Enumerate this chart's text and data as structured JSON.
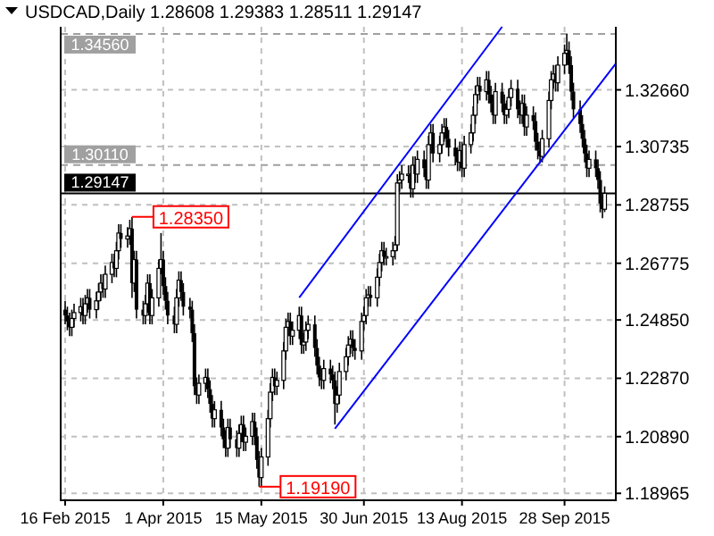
{
  "chart_data": {
    "type": "candlestick",
    "title": "USDCAD,Daily  1.28608 1.29383 1.28511 1.29147",
    "color": "#000000",
    "x": [
      "2015-02-16",
      "2015-02-17",
      "2015-02-18",
      "2015-02-19",
      "2015-02-20",
      "2015-02-23",
      "2015-02-24",
      "2015-02-25",
      "2015-02-26",
      "2015-02-27",
      "2015-03-02",
      "2015-03-03",
      "2015-03-04",
      "2015-03-05",
      "2015-03-06",
      "2015-03-09",
      "2015-03-10",
      "2015-03-11",
      "2015-03-12",
      "2015-03-13",
      "2015-03-16",
      "2015-03-17",
      "2015-03-18",
      "2015-03-19",
      "2015-03-20",
      "2015-03-23",
      "2015-03-24",
      "2015-03-25",
      "2015-03-26",
      "2015-03-27",
      "2015-03-30",
      "2015-03-31",
      "2015-04-01",
      "2015-04-02",
      "2015-04-03",
      "2015-04-06",
      "2015-04-07",
      "2015-04-08",
      "2015-04-09",
      "2015-04-10",
      "2015-04-13",
      "2015-04-14",
      "2015-04-15",
      "2015-04-16",
      "2015-04-17",
      "2015-04-20",
      "2015-04-21",
      "2015-04-22",
      "2015-04-23",
      "2015-04-24",
      "2015-04-27",
      "2015-04-28",
      "2015-04-29",
      "2015-04-30",
      "2015-05-01",
      "2015-05-04",
      "2015-05-05",
      "2015-05-06",
      "2015-05-07",
      "2015-05-08",
      "2015-05-11",
      "2015-05-12",
      "2015-05-13",
      "2015-05-14",
      "2015-05-15",
      "2015-05-18",
      "2015-05-19",
      "2015-05-20",
      "2015-05-21",
      "2015-05-22",
      "2015-05-25",
      "2015-05-26",
      "2015-05-27",
      "2015-05-28",
      "2015-05-29",
      "2015-06-01",
      "2015-06-02",
      "2015-06-03",
      "2015-06-04",
      "2015-06-05",
      "2015-06-08",
      "2015-06-09",
      "2015-06-10",
      "2015-06-11",
      "2015-06-12",
      "2015-06-15",
      "2015-06-16",
      "2015-06-17",
      "2015-06-18",
      "2015-06-19",
      "2015-06-22",
      "2015-06-23",
      "2015-06-24",
      "2015-06-25",
      "2015-06-26",
      "2015-06-29",
      "2015-06-30",
      "2015-07-01",
      "2015-07-02",
      "2015-07-03",
      "2015-07-06",
      "2015-07-07",
      "2015-07-08",
      "2015-07-09",
      "2015-07-10",
      "2015-07-13",
      "2015-07-14",
      "2015-07-15",
      "2015-07-16",
      "2015-07-17",
      "2015-07-20",
      "2015-07-21",
      "2015-07-22",
      "2015-07-23",
      "2015-07-24",
      "2015-07-27",
      "2015-07-28",
      "2015-07-29",
      "2015-07-30",
      "2015-07-31",
      "2015-08-03",
      "2015-08-04",
      "2015-08-05",
      "2015-08-06",
      "2015-08-07",
      "2015-08-10",
      "2015-08-11",
      "2015-08-12",
      "2015-08-13",
      "2015-08-14",
      "2015-08-17",
      "2015-08-18",
      "2015-08-19",
      "2015-08-20",
      "2015-08-21",
      "2015-08-24",
      "2015-08-25",
      "2015-08-26",
      "2015-08-27",
      "2015-08-28",
      "2015-08-31",
      "2015-09-01",
      "2015-09-02",
      "2015-09-03",
      "2015-09-04",
      "2015-09-07",
      "2015-09-08",
      "2015-09-09",
      "2015-09-10",
      "2015-09-11",
      "2015-09-14",
      "2015-09-15",
      "2015-09-16",
      "2015-09-17",
      "2015-09-18",
      "2015-09-21",
      "2015-09-22",
      "2015-09-23",
      "2015-09-24",
      "2015-09-25",
      "2015-09-28",
      "2015-09-29",
      "2015-09-30",
      "2015-10-01",
      "2015-10-02",
      "2015-10-05",
      "2015-10-06",
      "2015-10-07",
      "2015-10-08",
      "2015-10-09",
      "2015-10-12",
      "2015-10-13",
      "2015-10-14",
      "2015-10-15",
      "2015-10-16"
    ],
    "ohlc": [
      [
        1.252,
        1.255,
        1.247,
        1.25
      ],
      [
        1.25,
        1.253,
        1.245,
        1.248
      ],
      [
        1.248,
        1.251,
        1.243,
        1.246
      ],
      [
        1.246,
        1.252,
        1.243,
        1.249
      ],
      [
        1.249,
        1.254,
        1.246,
        1.251
      ],
      [
        1.251,
        1.256,
        1.248,
        1.253
      ],
      [
        1.253,
        1.256,
        1.247,
        1.25
      ],
      [
        1.25,
        1.257,
        1.247,
        1.254
      ],
      [
        1.254,
        1.259,
        1.251,
        1.256
      ],
      [
        1.256,
        1.259,
        1.249,
        1.252
      ],
      [
        1.252,
        1.258,
        1.249,
        1.255
      ],
      [
        1.255,
        1.261,
        1.252,
        1.258
      ],
      [
        1.258,
        1.264,
        1.255,
        1.261
      ],
      [
        1.261,
        1.264,
        1.256,
        1.259
      ],
      [
        1.259,
        1.267,
        1.256,
        1.264
      ],
      [
        1.264,
        1.271,
        1.261,
        1.268
      ],
      [
        1.268,
        1.271,
        1.263,
        1.266
      ],
      [
        1.266,
        1.275,
        1.263,
        1.272
      ],
      [
        1.272,
        1.281,
        1.269,
        1.278
      ],
      [
        1.278,
        1.281,
        1.273,
        1.276
      ],
      [
        1.276,
        1.28,
        1.273,
        1.277
      ],
      [
        1.277,
        1.2825,
        1.274,
        1.2795
      ],
      [
        1.2795,
        1.2835,
        1.256,
        1.261
      ],
      [
        1.261,
        1.272,
        1.258,
        1.269
      ],
      [
        1.269,
        1.272,
        1.249,
        1.252
      ],
      [
        1.252,
        1.255,
        1.247,
        1.25
      ],
      [
        1.25,
        1.257,
        1.247,
        1.254
      ],
      [
        1.254,
        1.264,
        1.251,
        1.261
      ],
      [
        1.261,
        1.264,
        1.247,
        1.25
      ],
      [
        1.25,
        1.259,
        1.247,
        1.256
      ],
      [
        1.256,
        1.269,
        1.253,
        1.266
      ],
      [
        1.266,
        1.278,
        1.264,
        1.269
      ],
      [
        1.269,
        1.272,
        1.257,
        1.26
      ],
      [
        1.26,
        1.263,
        1.252,
        1.255
      ],
      [
        1.255,
        1.258,
        1.247,
        1.25
      ],
      [
        1.25,
        1.253,
        1.244,
        1.247
      ],
      [
        1.247,
        1.259,
        1.244,
        1.256
      ],
      [
        1.256,
        1.265,
        1.253,
        1.262
      ],
      [
        1.262,
        1.265,
        1.255,
        1.258
      ],
      [
        1.258,
        1.261,
        1.25,
        1.253
      ],
      [
        1.253,
        1.256,
        1.249,
        1.252
      ],
      [
        1.252,
        1.255,
        1.241,
        1.244
      ],
      [
        1.244,
        1.247,
        1.223,
        1.226
      ],
      [
        1.226,
        1.229,
        1.22,
        1.223
      ],
      [
        1.223,
        1.23,
        1.22,
        1.227
      ],
      [
        1.227,
        1.232,
        1.224,
        1.229
      ],
      [
        1.229,
        1.232,
        1.222,
        1.225
      ],
      [
        1.225,
        1.228,
        1.217,
        1.22
      ],
      [
        1.22,
        1.223,
        1.212,
        1.215
      ],
      [
        1.215,
        1.221,
        1.212,
        1.218
      ],
      [
        1.218,
        1.221,
        1.209,
        1.212
      ],
      [
        1.212,
        1.215,
        1.205,
        1.208
      ],
      [
        1.208,
        1.211,
        1.202,
        1.205
      ],
      [
        1.205,
        1.215,
        1.202,
        1.212
      ],
      [
        1.212,
        1.215,
        1.205,
        1.208
      ],
      [
        1.208,
        1.211,
        1.202,
        1.205
      ],
      [
        1.205,
        1.213,
        1.202,
        1.21
      ],
      [
        1.21,
        1.216,
        1.207,
        1.213
      ],
      [
        1.213,
        1.216,
        1.204,
        1.207
      ],
      [
        1.207,
        1.212,
        1.204,
        1.209
      ],
      [
        1.209,
        1.217,
        1.206,
        1.214
      ],
      [
        1.214,
        1.217,
        1.206,
        1.209
      ],
      [
        1.209,
        1.212,
        1.198,
        1.201
      ],
      [
        1.201,
        1.204,
        1.1919,
        1.195
      ],
      [
        1.195,
        1.205,
        1.192,
        1.202
      ],
      [
        1.202,
        1.218,
        1.199,
        1.215
      ],
      [
        1.215,
        1.227,
        1.212,
        1.224
      ],
      [
        1.224,
        1.232,
        1.221,
        1.229
      ],
      [
        1.229,
        1.232,
        1.223,
        1.226
      ],
      [
        1.226,
        1.231,
        1.223,
        1.228
      ],
      [
        1.228,
        1.241,
        1.225,
        1.238
      ],
      [
        1.238,
        1.249,
        1.235,
        1.246
      ],
      [
        1.246,
        1.251,
        1.243,
        1.248
      ],
      [
        1.248,
        1.251,
        1.24,
        1.243
      ],
      [
        1.243,
        1.248,
        1.24,
        1.245
      ],
      [
        1.245,
        1.253,
        1.242,
        1.25
      ],
      [
        1.25,
        1.253,
        1.237,
        1.24
      ],
      [
        1.24,
        1.244,
        1.237,
        1.241
      ],
      [
        1.241,
        1.248,
        1.238,
        1.245
      ],
      [
        1.245,
        1.25,
        1.242,
        1.247
      ],
      [
        1.247,
        1.25,
        1.236,
        1.239
      ],
      [
        1.239,
        1.242,
        1.23,
        1.233
      ],
      [
        1.233,
        1.236,
        1.226,
        1.229
      ],
      [
        1.229,
        1.232,
        1.225,
        1.228
      ],
      [
        1.228,
        1.235,
        1.225,
        1.232
      ],
      [
        1.232,
        1.235,
        1.227,
        1.23
      ],
      [
        1.23,
        1.233,
        1.225,
        1.228
      ],
      [
        1.228,
        1.231,
        1.213,
        1.22
      ],
      [
        1.22,
        1.226,
        1.217,
        1.223
      ],
      [
        1.223,
        1.234,
        1.22,
        1.231
      ],
      [
        1.231,
        1.239,
        1.228,
        1.236
      ],
      [
        1.236,
        1.243,
        1.233,
        1.24
      ],
      [
        1.24,
        1.245,
        1.237,
        1.242
      ],
      [
        1.242,
        1.245,
        1.236,
        1.239
      ],
      [
        1.239,
        1.242,
        1.235,
        1.238
      ],
      [
        1.238,
        1.251,
        1.235,
        1.248
      ],
      [
        1.248,
        1.253,
        1.245,
        1.25
      ],
      [
        1.25,
        1.259,
        1.247,
        1.256
      ],
      [
        1.256,
        1.26,
        1.253,
        1.257
      ],
      [
        1.257,
        1.26,
        1.253,
        1.256
      ],
      [
        1.256,
        1.266,
        1.253,
        1.263
      ],
      [
        1.263,
        1.271,
        1.26,
        1.268
      ],
      [
        1.268,
        1.275,
        1.265,
        1.272
      ],
      [
        1.272,
        1.275,
        1.267,
        1.27
      ],
      [
        1.27,
        1.273,
        1.267,
        1.27
      ],
      [
        1.27,
        1.275,
        1.267,
        1.272
      ],
      [
        1.272,
        1.277,
        1.269,
        1.274
      ],
      [
        1.274,
        1.298,
        1.272,
        1.295
      ],
      [
        1.295,
        1.299,
        1.292,
        1.296
      ],
      [
        1.296,
        1.301,
        1.293,
        1.298
      ],
      [
        1.298,
        1.301,
        1.295,
        1.298
      ],
      [
        1.298,
        1.301,
        1.29,
        1.293
      ],
      [
        1.293,
        1.304,
        1.29,
        1.301
      ],
      [
        1.301,
        1.304,
        1.295,
        1.298
      ],
      [
        1.298,
        1.306,
        1.295,
        1.303
      ],
      [
        1.303,
        1.306,
        1.297,
        1.3
      ],
      [
        1.3,
        1.303,
        1.293,
        1.296
      ],
      [
        1.296,
        1.311,
        1.293,
        1.308
      ],
      [
        1.308,
        1.315,
        1.305,
        1.312
      ],
      [
        1.312,
        1.315,
        1.302,
        1.305
      ],
      [
        1.305,
        1.311,
        1.302,
        1.308
      ],
      [
        1.308,
        1.315,
        1.305,
        1.312
      ],
      [
        1.312,
        1.317,
        1.309,
        1.314
      ],
      [
        1.314,
        1.317,
        1.307,
        1.31
      ],
      [
        1.31,
        1.313,
        1.304,
        1.307
      ],
      [
        1.307,
        1.31,
        1.301,
        1.304
      ],
      [
        1.304,
        1.307,
        1.299,
        1.302
      ],
      [
        1.302,
        1.309,
        1.299,
        1.306
      ],
      [
        1.306,
        1.309,
        1.297,
        1.3
      ],
      [
        1.3,
        1.311,
        1.297,
        1.308
      ],
      [
        1.308,
        1.315,
        1.305,
        1.312
      ],
      [
        1.312,
        1.321,
        1.309,
        1.318
      ],
      [
        1.318,
        1.328,
        1.315,
        1.325
      ],
      [
        1.325,
        1.331,
        1.322,
        1.328
      ],
      [
        1.328,
        1.331,
        1.323,
        1.326
      ],
      [
        1.326,
        1.333,
        1.323,
        1.33
      ],
      [
        1.33,
        1.333,
        1.322,
        1.325
      ],
      [
        1.325,
        1.328,
        1.319,
        1.322
      ],
      [
        1.322,
        1.325,
        1.315,
        1.318
      ],
      [
        1.318,
        1.329,
        1.315,
        1.326
      ],
      [
        1.326,
        1.329,
        1.319,
        1.322
      ],
      [
        1.322,
        1.325,
        1.315,
        1.318
      ],
      [
        1.318,
        1.323,
        1.315,
        1.32
      ],
      [
        1.32,
        1.327,
        1.317,
        1.324
      ],
      [
        1.324,
        1.33,
        1.321,
        1.327
      ],
      [
        1.327,
        1.33,
        1.317,
        1.32
      ],
      [
        1.32,
        1.323,
        1.315,
        1.318
      ],
      [
        1.318,
        1.325,
        1.315,
        1.322
      ],
      [
        1.322,
        1.325,
        1.311,
        1.314
      ],
      [
        1.314,
        1.321,
        1.311,
        1.318
      ],
      [
        1.318,
        1.321,
        1.313,
        1.316
      ],
      [
        1.316,
        1.319,
        1.306,
        1.309
      ],
      [
        1.309,
        1.312,
        1.303,
        1.306
      ],
      [
        1.306,
        1.309,
        1.3017,
        1.304
      ],
      [
        1.304,
        1.313,
        1.302,
        1.31
      ],
      [
        1.31,
        1.326,
        1.307,
        1.323
      ],
      [
        1.323,
        1.333,
        1.32,
        1.33
      ],
      [
        1.33,
        1.335,
        1.327,
        1.332
      ],
      [
        1.332,
        1.335,
        1.326,
        1.329
      ],
      [
        1.329,
        1.338,
        1.326,
        1.335
      ],
      [
        1.335,
        1.342,
        1.332,
        1.339
      ],
      [
        1.339,
        1.3456,
        1.335,
        1.34
      ],
      [
        1.34,
        1.343,
        1.332,
        1.335
      ],
      [
        1.335,
        1.338,
        1.323,
        1.326
      ],
      [
        1.326,
        1.329,
        1.317,
        1.32
      ],
      [
        1.32,
        1.323,
        1.312,
        1.315
      ],
      [
        1.315,
        1.318,
        1.307,
        1.31
      ],
      [
        1.31,
        1.313,
        1.302,
        1.305
      ],
      [
        1.305,
        1.308,
        1.297,
        1.3
      ],
      [
        1.3,
        1.306,
        1.297,
        1.303
      ],
      [
        1.303,
        1.306,
        1.297,
        1.3
      ],
      [
        1.3,
        1.303,
        1.293,
        1.296
      ],
      [
        1.296,
        1.299,
        1.285,
        1.288
      ],
      [
        1.288,
        1.291,
        1.283,
        1.2861
      ],
      [
        1.28608,
        1.29383,
        1.28511,
        1.29147
      ]
    ],
    "series": [
      {
        "type": "line",
        "color": "#0000ff",
        "x": [
          "2015-06-01",
          "2015-08-31"
        ],
        "values": [
          1.2561,
          1.348
        ]
      },
      {
        "type": "line",
        "color": "#0000ff",
        "x": [
          "2015-06-17",
          "2015-10-21"
        ],
        "values": [
          1.2116,
          1.3355
        ]
      }
    ],
    "xlim": [
      "2015-02-14",
      "2015-10-21"
    ],
    "xticks": [
      {
        "value": "2015-02-16",
        "label": "16 Feb 2015"
      },
      {
        "value": "2015-04-01",
        "label": "1 Apr 2015"
      },
      {
        "value": "2015-05-15",
        "label": "15 May 2015"
      },
      {
        "value": "2015-06-30",
        "label": "30 Jun 2015"
      },
      {
        "value": "2015-08-13",
        "label": "13 Aug 2015"
      },
      {
        "value": "2015-09-28",
        "label": "28 Sep 2015"
      }
    ],
    "ylim": [
      1.1873,
      1.348
    ],
    "yticks": [
      1.18965,
      {
        "value": 1.2089,
        "label": "1.20890"
      },
      {
        "value": 1.2287,
        "label": "1.22870"
      },
      {
        "value": 1.2485,
        "label": "1.24850"
      },
      1.26775,
      1.28755,
      1.30735,
      {
        "value": 1.3266,
        "label": "1.32660"
      }
    ],
    "grid": true,
    "ref_lines": [
      {
        "axis": "y",
        "value": 1.3456,
        "label": "1.34560",
        "color": "#a0a0a0",
        "line_style": "dashed"
      },
      {
        "axis": "y",
        "value": 1.3011,
        "label": "1.30110",
        "color": "#a0a0a0",
        "line_style": "dashed"
      },
      {
        "axis": "y",
        "value": 1.29147,
        "label": "1.29147",
        "color": "#000000",
        "line_style": "solid"
      }
    ],
    "annotations": [
      {
        "text": "1.28350",
        "x": "2015-03-18",
        "y": 1.2835
      },
      {
        "text": "1.19190",
        "x": "2015-05-14",
        "y": 1.1919
      }
    ]
  }
}
